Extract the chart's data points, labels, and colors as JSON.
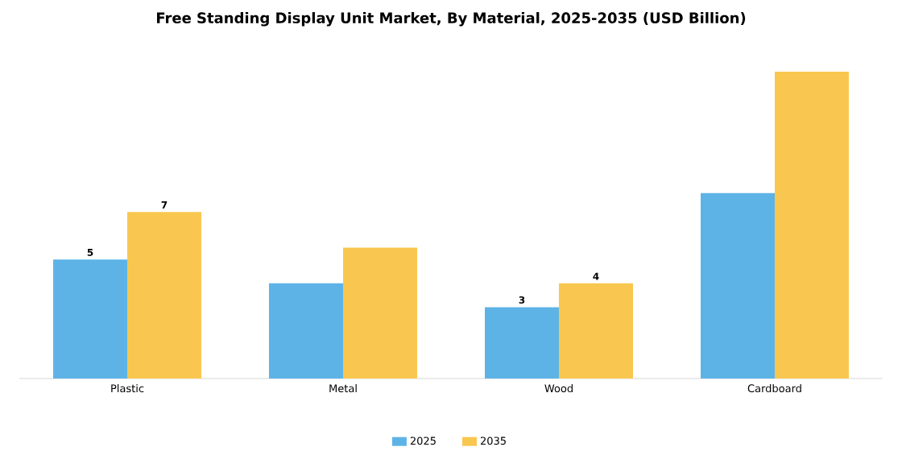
{
  "chart_data": {
    "type": "bar",
    "title": "Free Standing Display Unit Market, By Material, 2025-2035 (USD Billion)",
    "categories": [
      "Plastic",
      "Metal",
      "Wood",
      "Cardboard"
    ],
    "series": [
      {
        "name": "2025",
        "color": "#5db3e6",
        "values": [
          5,
          4,
          3,
          7.8
        ],
        "value_labels": [
          "5",
          null,
          "3",
          null
        ]
      },
      {
        "name": "2035",
        "color": "#f9c74f",
        "values": [
          7,
          5.5,
          4,
          12.9
        ],
        "value_labels": [
          "7",
          null,
          "4",
          null
        ]
      }
    ],
    "legend": "bottom"
  }
}
